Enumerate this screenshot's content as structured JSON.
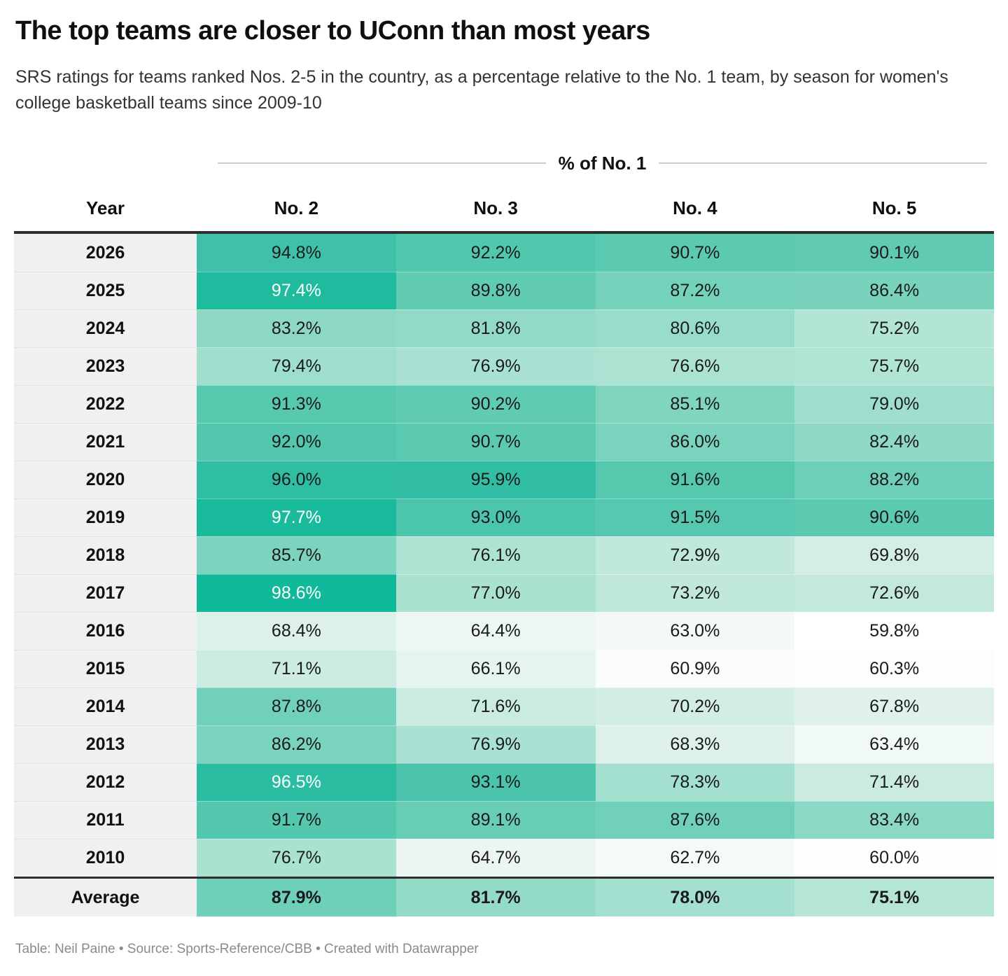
{
  "title": "The top teams are closer to UConn than most years",
  "subtitle": "SRS ratings for teams ranked Nos. 2-5 in the country, as a percentage relative to the No. 1 team, by season for women's college basketball teams since 2009-10",
  "footer": "Table: Neil Paine • Source: Sports-Reference/CBB • Created with Datawrapper",
  "chart_data": {
    "type": "heatmap-table",
    "group_header": "% of No. 1",
    "columns": [
      "Year",
      "No. 2",
      "No. 3",
      "No. 4",
      "No. 5"
    ],
    "value_unit": "%",
    "rows": [
      {
        "year": "2026",
        "values": [
          94.8,
          92.2,
          90.7,
          90.1
        ]
      },
      {
        "year": "2025",
        "values": [
          97.4,
          89.8,
          87.2,
          86.4
        ]
      },
      {
        "year": "2024",
        "values": [
          83.2,
          81.8,
          80.6,
          75.2
        ]
      },
      {
        "year": "2023",
        "values": [
          79.4,
          76.9,
          76.6,
          75.7
        ]
      },
      {
        "year": "2022",
        "values": [
          91.3,
          90.2,
          85.1,
          79.0
        ]
      },
      {
        "year": "2021",
        "values": [
          92.0,
          90.7,
          86.0,
          82.4
        ]
      },
      {
        "year": "2020",
        "values": [
          96.0,
          95.9,
          91.6,
          88.2
        ]
      },
      {
        "year": "2019",
        "values": [
          97.7,
          93.0,
          91.5,
          90.6
        ]
      },
      {
        "year": "2018",
        "values": [
          85.7,
          76.1,
          72.9,
          69.8
        ]
      },
      {
        "year": "2017",
        "values": [
          98.6,
          77.0,
          73.2,
          72.6
        ]
      },
      {
        "year": "2016",
        "values": [
          68.4,
          64.4,
          63.0,
          59.8
        ]
      },
      {
        "year": "2015",
        "values": [
          71.1,
          66.1,
          60.9,
          60.3
        ]
      },
      {
        "year": "2014",
        "values": [
          87.8,
          71.6,
          70.2,
          67.8
        ]
      },
      {
        "year": "2013",
        "values": [
          86.2,
          76.9,
          68.3,
          63.4
        ]
      },
      {
        "year": "2012",
        "values": [
          96.5,
          93.1,
          78.3,
          71.4
        ]
      },
      {
        "year": "2011",
        "values": [
          91.7,
          89.1,
          87.6,
          83.4
        ]
      },
      {
        "year": "2010",
        "values": [
          76.7,
          64.7,
          62.7,
          60.0
        ]
      }
    ],
    "average_row": {
      "label": "Average",
      "values": [
        87.9,
        81.7,
        78.0,
        75.1
      ]
    },
    "color_scale": {
      "stops": [
        [
          59.8,
          "#fefffe"
        ],
        [
          68.4,
          "#ddf0e9"
        ],
        [
          76.7,
          "#aae2d2"
        ],
        [
          83.2,
          "#8cd8c4"
        ],
        [
          87.8,
          "#70d0b9"
        ],
        [
          91.3,
          "#57c9af"
        ],
        [
          94.8,
          "#3fc0a8"
        ],
        [
          98.6,
          "#0fb999"
        ]
      ],
      "white_text_threshold": 96.2,
      "dark_text_color": "#1a1a1a",
      "light_text_color": "#ffffff"
    }
  }
}
